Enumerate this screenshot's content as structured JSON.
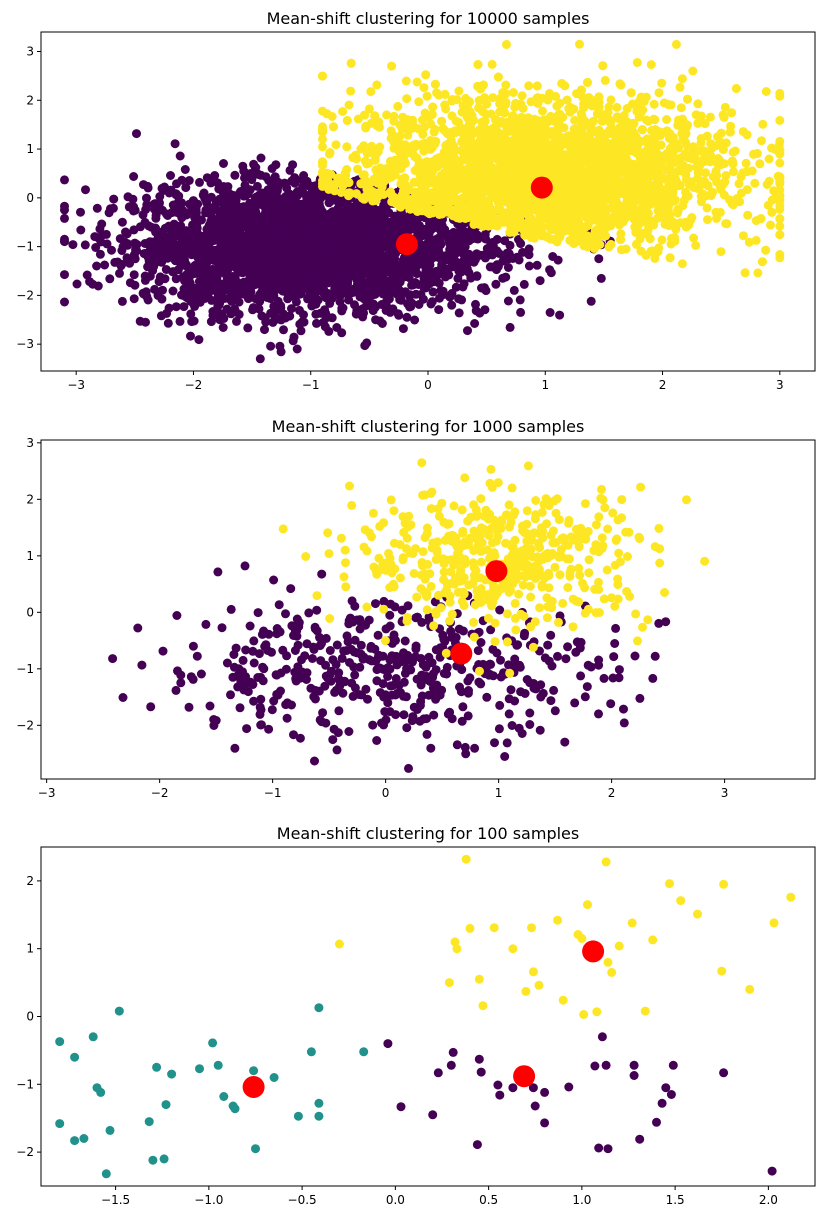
{
  "chart_data": [
    {
      "type": "scatter",
      "title": "Mean-shift clustering for 10000 samples",
      "xlabel": "",
      "ylabel": "",
      "xlim": [
        -3.3,
        3.3
      ],
      "ylim": [
        -3.55,
        3.4
      ],
      "xticks": [
        -3,
        -2,
        -1,
        0,
        1,
        2,
        3
      ],
      "yticks": [
        -3,
        -2,
        -1,
        0,
        1,
        2,
        3
      ],
      "grid": false,
      "colors": [
        "#440154",
        "#fde725"
      ],
      "center_color": "#ff0000",
      "clusters": [
        {
          "region": [
            -3.1,
            2.3,
            -3.3,
            1.4
          ],
          "boundary_side": "below",
          "rough_center": [
            -1.0,
            -1.0
          ],
          "spread": [
            0.75,
            0.65
          ]
        },
        {
          "region": [
            -0.9,
            3.0,
            -2.1,
            3.15
          ],
          "boundary_side": "above",
          "rough_center": [
            1.0,
            0.5
          ],
          "spread": [
            0.8,
            0.8
          ]
        }
      ],
      "n_samples": 10000,
      "cluster_centers": [
        [
          -0.18,
          -0.95
        ],
        [
          0.97,
          0.21
        ]
      ]
    },
    {
      "type": "scatter",
      "title": "Mean-shift clustering for 1000 samples",
      "xlabel": "",
      "ylabel": "",
      "xlim": [
        -3.05,
        3.8
      ],
      "ylim": [
        -2.95,
        3.05
      ],
      "xticks": [
        -3,
        -2,
        -1,
        0,
        1,
        2,
        3
      ],
      "yticks": [
        -2,
        -1,
        0,
        1,
        2,
        3
      ],
      "grid": false,
      "colors": [
        "#440154",
        "#fde725"
      ],
      "center_color": "#ff0000",
      "clusters": [
        {
          "rough_center": [
            0.0,
            -1.0
          ],
          "spread": [
            1.0,
            0.6
          ]
        },
        {
          "rough_center": [
            1.05,
            0.95
          ],
          "spread": [
            0.65,
            0.6
          ]
        }
      ],
      "n_samples": 1000,
      "cluster_centers": [
        [
          0.67,
          -0.73
        ],
        [
          0.98,
          0.73
        ]
      ]
    },
    {
      "type": "scatter",
      "title": "Mean-shift clustering for 100 samples",
      "xlabel": "",
      "ylabel": "",
      "xlim": [
        -1.9,
        2.25
      ],
      "ylim": [
        -2.5,
        2.5
      ],
      "xticks": [
        -1.5,
        -1.0,
        -0.5,
        0.0,
        0.5,
        1.0,
        1.5,
        2.0
      ],
      "yticks": [
        -2,
        -1,
        0,
        1,
        2
      ],
      "grid": false,
      "colors": [
        "#440154",
        "#21918c",
        "#fde725"
      ],
      "center_color": "#ff0000",
      "points": [
        {
          "c": 1,
          "pts": [
            [
              -1.8,
              -0.37
            ],
            [
              -1.8,
              -1.58
            ],
            [
              -1.72,
              -0.6
            ],
            [
              -1.72,
              -1.83
            ],
            [
              -1.67,
              -1.8
            ],
            [
              -1.62,
              -0.3
            ],
            [
              -1.6,
              -1.05
            ],
            [
              -1.58,
              -1.12
            ],
            [
              -1.55,
              -2.32
            ],
            [
              -1.53,
              -1.68
            ],
            [
              -1.48,
              0.08
            ],
            [
              -1.32,
              -1.55
            ],
            [
              -1.3,
              -2.12
            ],
            [
              -1.28,
              -0.75
            ],
            [
              -1.24,
              -2.1
            ],
            [
              -1.23,
              -1.3
            ],
            [
              -1.2,
              -0.85
            ],
            [
              -1.05,
              -0.77
            ],
            [
              -0.98,
              -0.39
            ],
            [
              -0.95,
              -0.72
            ],
            [
              -0.92,
              -1.18
            ],
            [
              -0.87,
              -1.32
            ],
            [
              -0.86,
              -1.36
            ],
            [
              -0.76,
              -0.8
            ],
            [
              -0.75,
              -1.95
            ],
            [
              -0.65,
              -0.9
            ],
            [
              -0.52,
              -1.47
            ],
            [
              -0.45,
              -0.52
            ],
            [
              -0.41,
              0.13
            ],
            [
              -0.41,
              -1.28
            ],
            [
              -0.41,
              -1.47
            ],
            [
              -0.17,
              -0.52
            ]
          ]
        },
        {
          "c": 0,
          "pts": [
            [
              -0.04,
              -0.4
            ],
            [
              0.03,
              -1.33
            ],
            [
              0.2,
              -1.45
            ],
            [
              0.23,
              -0.83
            ],
            [
              0.3,
              -0.72
            ],
            [
              0.31,
              -0.53
            ],
            [
              0.44,
              -1.89
            ],
            [
              0.45,
              -0.63
            ],
            [
              0.46,
              -0.82
            ],
            [
              0.55,
              -1.01
            ],
            [
              0.56,
              -1.16
            ],
            [
              0.63,
              -1.05
            ],
            [
              0.74,
              -1.05
            ],
            [
              0.75,
              -1.32
            ],
            [
              0.8,
              -1.12
            ],
            [
              0.8,
              -1.57
            ],
            [
              0.93,
              -1.04
            ],
            [
              1.07,
              -0.73
            ],
            [
              1.09,
              -1.94
            ],
            [
              1.11,
              -0.3
            ],
            [
              1.13,
              -0.72
            ],
            [
              1.14,
              -1.95
            ],
            [
              1.28,
              -0.72
            ],
            [
              1.28,
              -0.87
            ],
            [
              1.31,
              -1.81
            ],
            [
              1.4,
              -1.56
            ],
            [
              1.43,
              -1.28
            ],
            [
              1.45,
              -1.05
            ],
            [
              1.48,
              -1.15
            ],
            [
              1.49,
              -0.72
            ],
            [
              1.76,
              -0.83
            ],
            [
              2.02,
              -2.28
            ]
          ]
        },
        {
          "c": 2,
          "pts": [
            [
              -0.3,
              1.07
            ],
            [
              0.29,
              0.5
            ],
            [
              0.32,
              1.1
            ],
            [
              0.33,
              1.0
            ],
            [
              0.38,
              2.32
            ],
            [
              0.4,
              1.3
            ],
            [
              0.45,
              0.55
            ],
            [
              0.47,
              0.16
            ],
            [
              0.53,
              1.31
            ],
            [
              0.63,
              1.0
            ],
            [
              0.7,
              0.37
            ],
            [
              0.73,
              1.31
            ],
            [
              0.74,
              0.66
            ],
            [
              0.77,
              0.46
            ],
            [
              0.87,
              1.42
            ],
            [
              0.9,
              0.24
            ],
            [
              0.98,
              1.21
            ],
            [
              1.0,
              1.15
            ],
            [
              1.01,
              0.03
            ],
            [
              1.03,
              1.65
            ],
            [
              1.08,
              0.07
            ],
            [
              1.13,
              2.28
            ],
            [
              1.14,
              0.8
            ],
            [
              1.16,
              0.65
            ],
            [
              1.2,
              1.04
            ],
            [
              1.27,
              1.38
            ],
            [
              1.34,
              0.08
            ],
            [
              1.38,
              1.13
            ],
            [
              1.47,
              1.96
            ],
            [
              1.53,
              1.71
            ],
            [
              1.62,
              1.51
            ],
            [
              1.75,
              0.67
            ],
            [
              1.76,
              1.95
            ],
            [
              1.9,
              0.4
            ],
            [
              2.03,
              1.38
            ],
            [
              2.12,
              1.76
            ]
          ]
        }
      ],
      "n_samples": 100,
      "cluster_centers": [
        [
          0.69,
          -0.88
        ],
        [
          1.06,
          0.96
        ],
        [
          -0.76,
          -1.04
        ]
      ]
    }
  ]
}
